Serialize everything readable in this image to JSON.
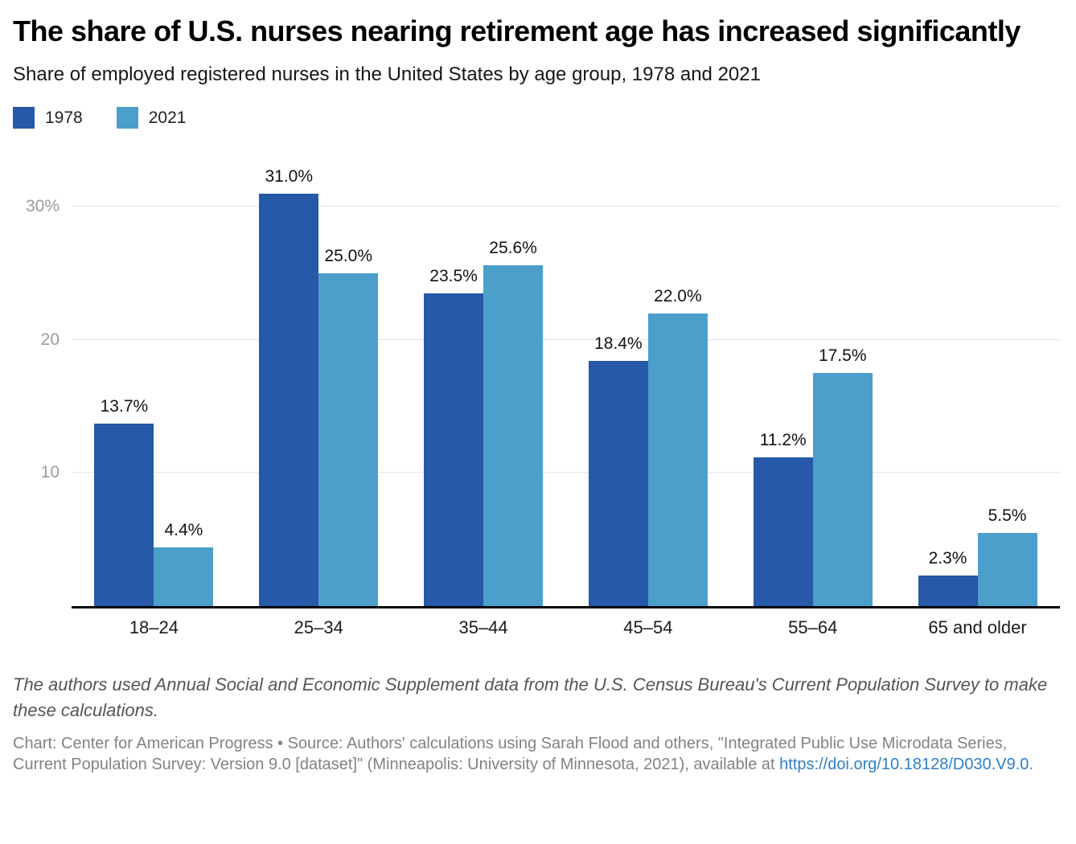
{
  "header": {
    "title": "The share of U.S. nurses nearing retirement age has increased significantly",
    "subtitle": "Share of employed registered nurses in the United States by age group, 1978 and 2021"
  },
  "legend": [
    {
      "label": "1978",
      "color": "#2659a7"
    },
    {
      "label": "2021",
      "color": "#4c9fcb"
    }
  ],
  "chart_data": {
    "type": "bar",
    "title": "The share of U.S. nurses nearing retirement age has increased significantly",
    "subtitle": "Share of employed registered nurses in the United States by age group, 1978 and 2021",
    "categories": [
      "18–24",
      "25–34",
      "35–44",
      "45–54",
      "55–64",
      "65 and older"
    ],
    "series": [
      {
        "name": "1978",
        "color": "#2659a7",
        "values": [
          13.7,
          31.0,
          23.5,
          18.4,
          11.2,
          2.3
        ]
      },
      {
        "name": "2021",
        "color": "#4c9fcb",
        "values": [
          4.4,
          25.0,
          25.6,
          22.0,
          17.5,
          5.5
        ]
      }
    ],
    "value_label_suffix": "%",
    "xlabel": "",
    "ylabel": "",
    "ylim": [
      0,
      35
    ],
    "yticks": [
      {
        "value": 10,
        "label": "10"
      },
      {
        "value": 20,
        "label": "20"
      },
      {
        "value": 30,
        "label": "30%"
      }
    ],
    "grid": "horizontal",
    "legend_position": "top-left"
  },
  "footer": {
    "note": "The authors used Annual Social and Economic Supplement data from the U.S. Census Bureau's Current Population Survey to make these calculations.",
    "credit_before_link": "Chart: Center for American Progress • Source: Authors' calculations using Sarah Flood and others, \"Integrated Public Use Microdata Series, Current Population Survey: Version 9.0 [dataset]\" (Minneapolis: University of Minnesota, 2021), available at ",
    "credit_link": "https://doi.org/10.18128/D030.V9.0",
    "credit_after_link": "."
  }
}
